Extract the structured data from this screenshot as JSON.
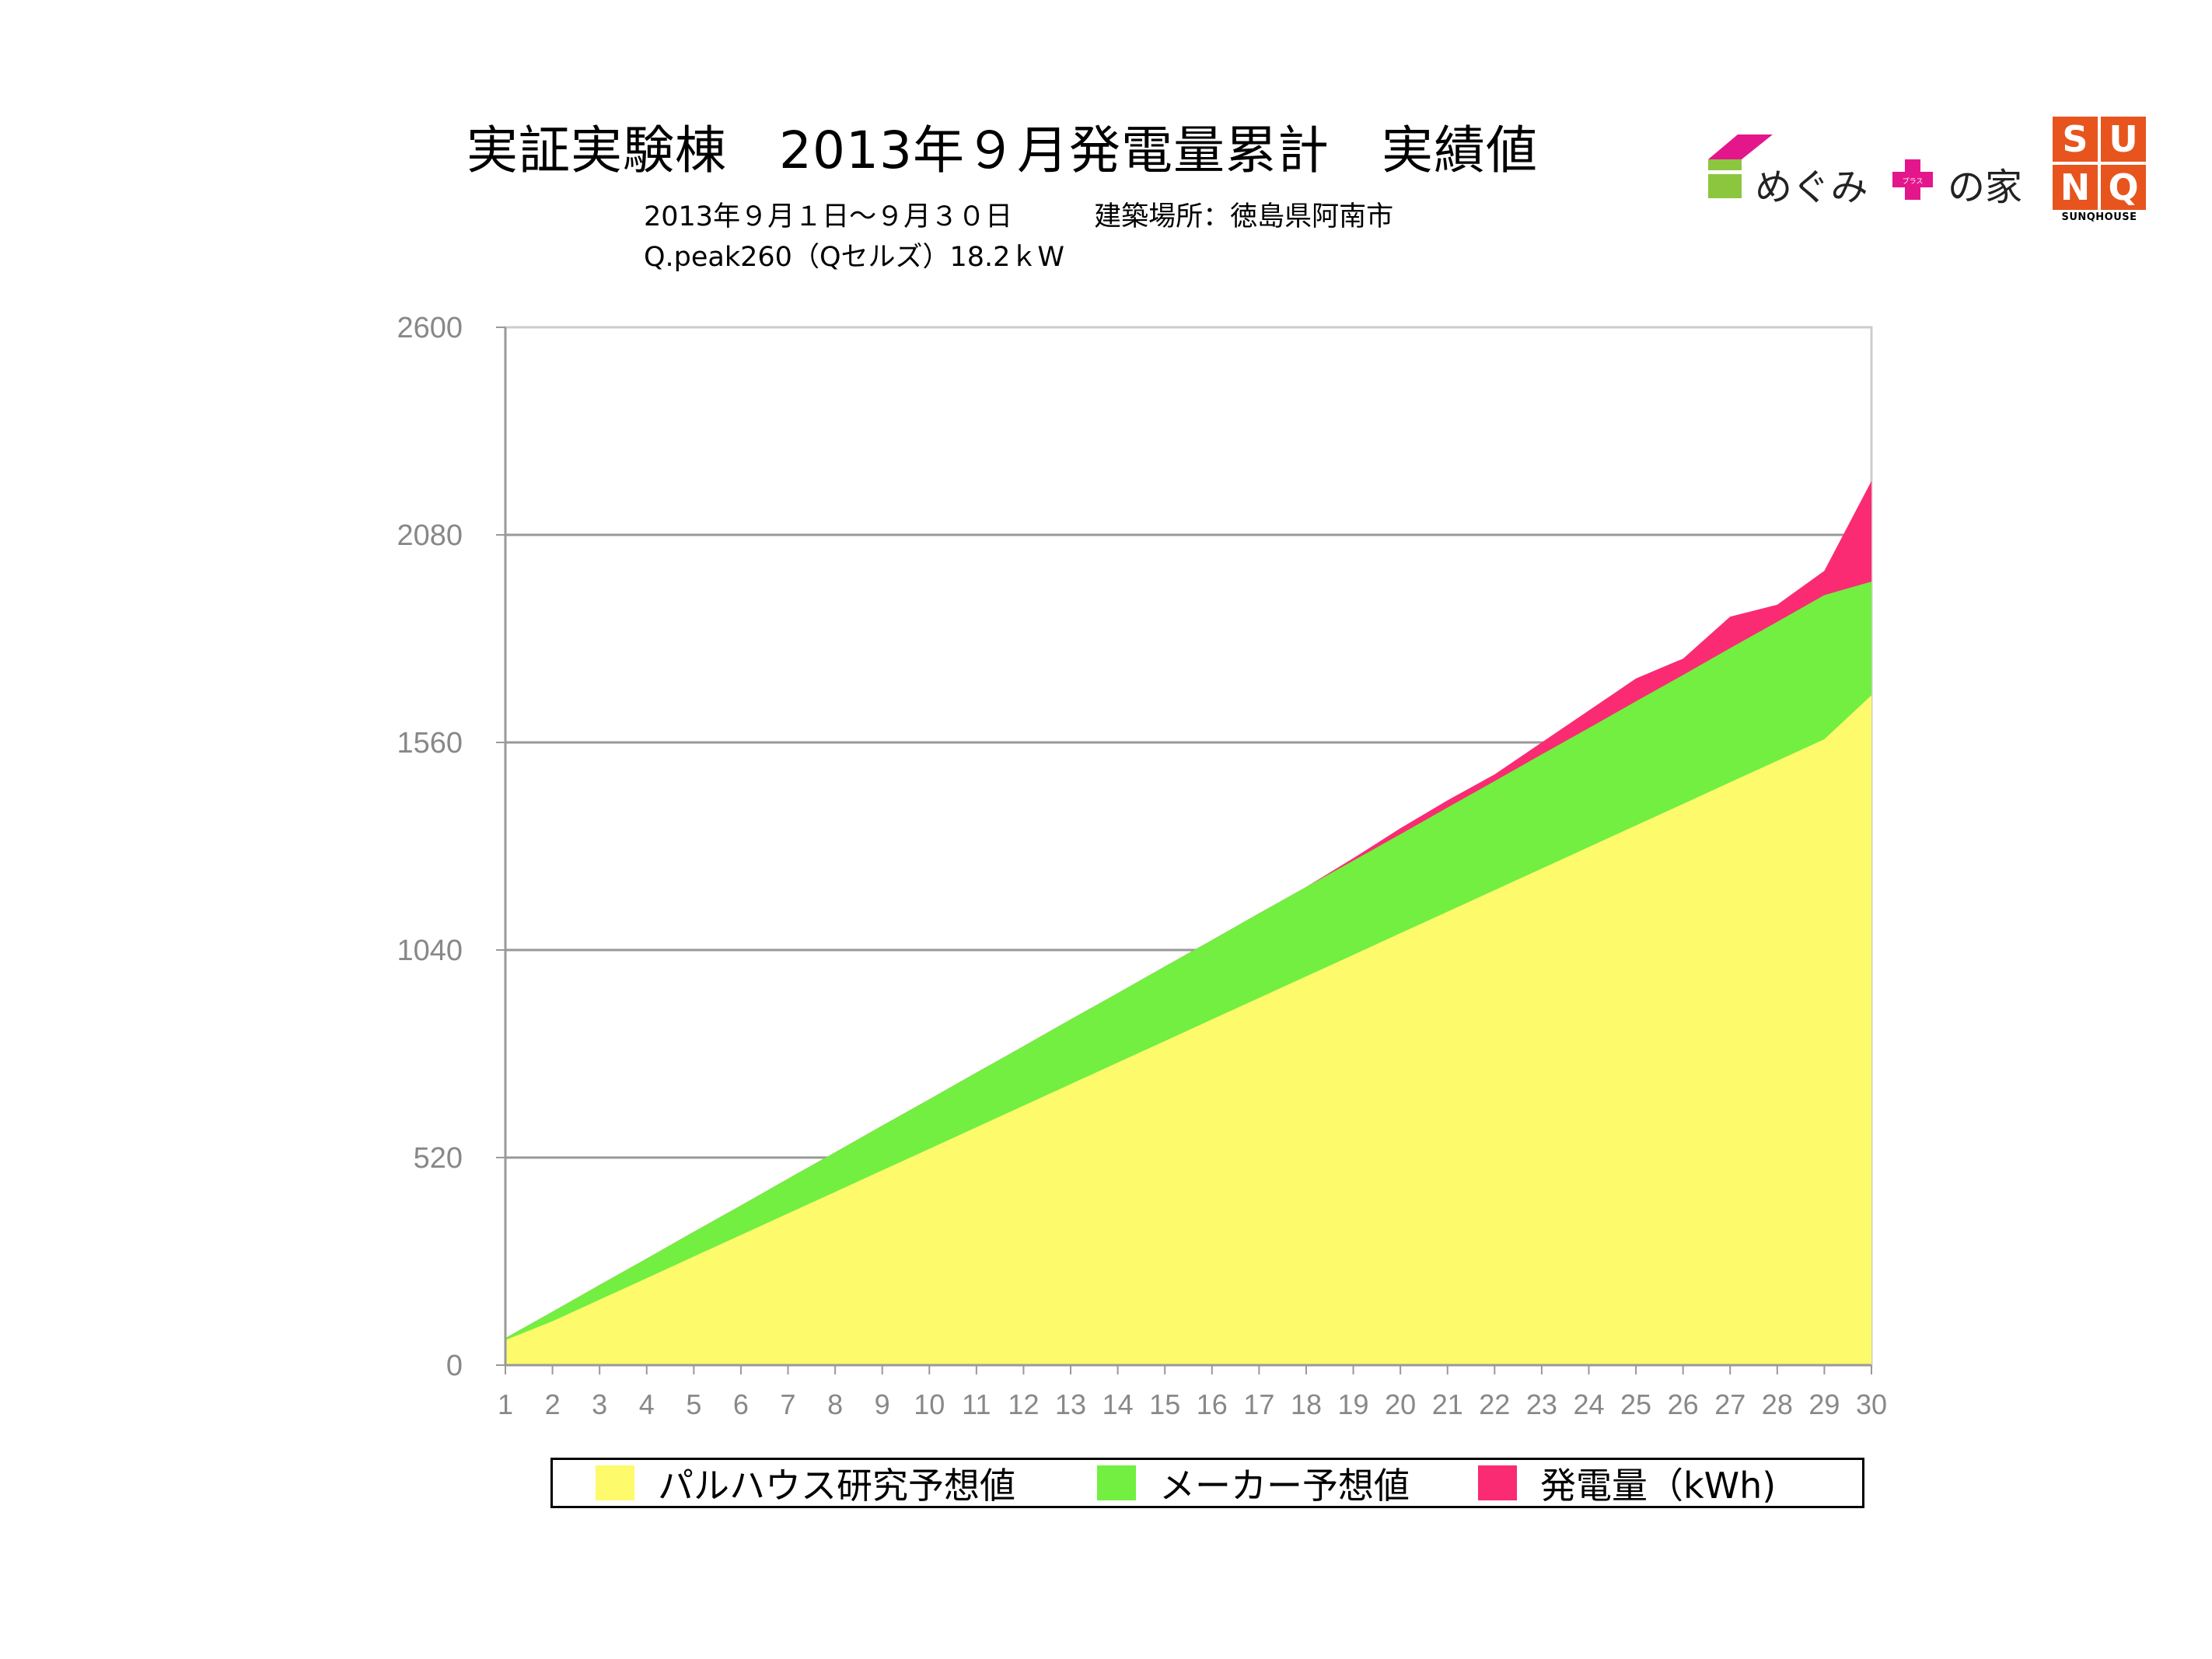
{
  "header": {
    "title": "実証実験棟　2013年９月発電量累計　実績値",
    "subtitle_line1": "2013年９月１日〜９月３０日　　　建築場所：徳島県阿南市",
    "subtitle_line2": "Q.peak260（Qセルズ）18.2ｋW"
  },
  "logos": {
    "megumi_text_left": "めぐみ",
    "megumi_plus": "プラス",
    "megumi_text_right": "の家",
    "sunq_letters": [
      "S",
      "U",
      "N",
      "Q"
    ],
    "sunq_caption": "SUNQHOUSE"
  },
  "colors": {
    "palhouse": "#fdfa6c",
    "maker": "#72ef41",
    "actual": "#fa2b73",
    "grid": "#999999",
    "axis_text": "#888888"
  },
  "chart_data": {
    "type": "area",
    "ylim": [
      0,
      2600
    ],
    "yticks": [
      "0",
      "520",
      "1040",
      "1560",
      "2080",
      "2600"
    ],
    "x": [
      1,
      2,
      3,
      4,
      5,
      6,
      7,
      8,
      9,
      10,
      11,
      12,
      13,
      14,
      15,
      16,
      17,
      18,
      19,
      20,
      21,
      22,
      23,
      24,
      25,
      26,
      27,
      28,
      29,
      30
    ],
    "series": [
      {
        "name": "発電量（kWh)",
        "values": [
          68,
          134,
          201,
          267,
          334,
          400,
          467,
          533,
          600,
          666,
          733,
          799,
          866,
          932,
          999,
          1065,
          1132,
          1198,
          1270,
          1345,
          1415,
          1480,
          1560,
          1640,
          1720,
          1770,
          1875,
          1905,
          1990,
          2215
        ]
      },
      {
        "name": "メーカー予想値",
        "values": [
          68,
          134,
          201,
          267,
          334,
          400,
          467,
          533,
          600,
          666,
          733,
          799,
          866,
          932,
          999,
          1065,
          1132,
          1198,
          1264,
          1330,
          1397,
          1463,
          1530,
          1596,
          1663,
          1729,
          1796,
          1862,
          1929,
          1963
        ]
      },
      {
        "name": "パルハウス研究予想値",
        "values": [
          63,
          110,
          164,
          218,
          272,
          326,
          380,
          434,
          488,
          542,
          596,
          650,
          704,
          758,
          812,
          866,
          920,
          974,
          1028,
          1082,
          1136,
          1190,
          1244,
          1298,
          1352,
          1406,
          1460,
          1514,
          1568,
          1678
        ]
      }
    ],
    "legend": [
      "パルハウス研究予想値",
      "メーカー予想値",
      "発電量（kWh)"
    ]
  }
}
